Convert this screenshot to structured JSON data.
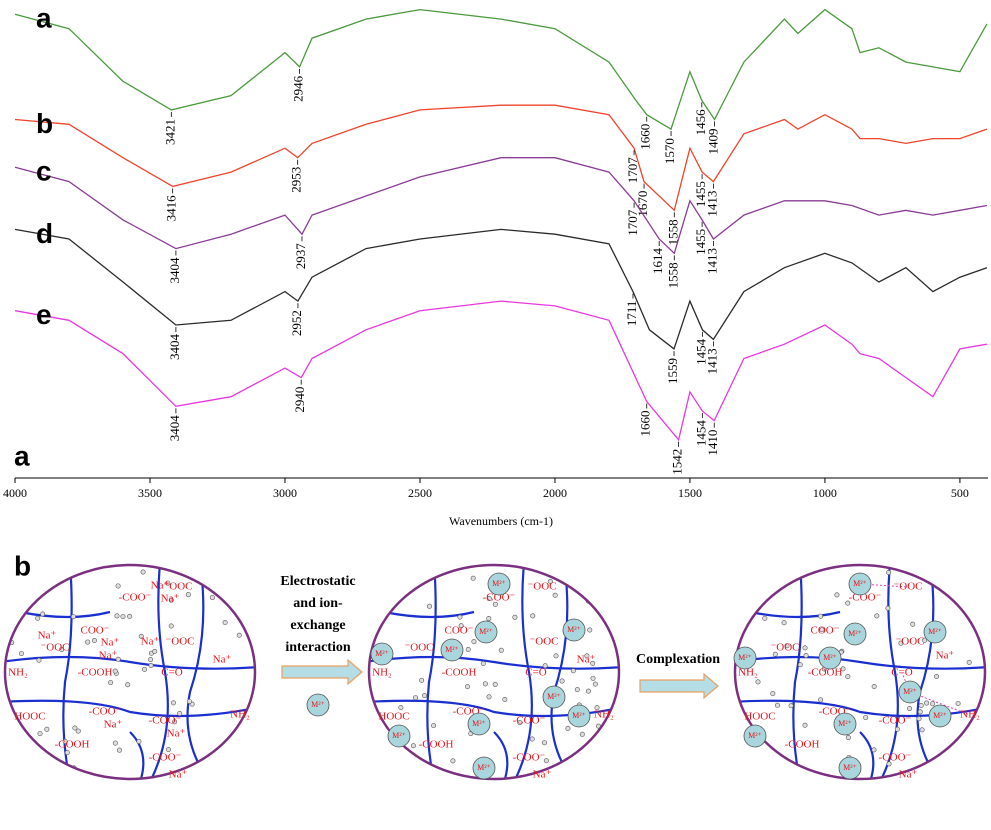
{
  "chart_data": {
    "type": "line",
    "xlabel": "Wavenumbers (cm-1)",
    "panel_label": "a",
    "xlim": [
      4000,
      396
    ],
    "ylim": [
      0,
      100
    ],
    "xticks": [
      4000,
      3500,
      3000,
      2500,
      2000,
      1500,
      1000,
      500
    ],
    "series": [
      {
        "name": "a",
        "color": "#4a9a3c",
        "x": [
          4000,
          3800,
          3600,
          3421,
          3200,
          3000,
          2946,
          2900,
          2700,
          2500,
          2200,
          2000,
          1800,
          1700,
          1660,
          1570,
          1500,
          1456,
          1409,
          1300,
          1150,
          1100,
          1000,
          900,
          870,
          800,
          700,
          600,
          500,
          400
        ],
        "values": [
          97,
          94,
          83,
          77,
          80,
          89,
          86,
          92,
          96,
          98,
          96,
          94,
          87,
          79,
          76,
          73,
          85,
          79,
          75,
          87,
          96,
          93,
          98,
          94,
          89,
          90,
          87,
          86,
          85,
          95
        ],
        "peaks": [
          3421,
          2946,
          1660,
          1570,
          1456,
          1409
        ]
      },
      {
        "name": "b",
        "color": "#f0442c",
        "x": [
          4000,
          3800,
          3600,
          3416,
          3200,
          3000,
          2953,
          2900,
          2700,
          2500,
          2200,
          2000,
          1800,
          1707,
          1670,
          1558,
          1500,
          1455,
          1413,
          1300,
          1150,
          1100,
          1000,
          900,
          870,
          800,
          700,
          600,
          500,
          400
        ],
        "values": [
          75,
          74,
          67,
          61,
          64,
          69,
          67,
          70,
          74,
          77,
          78,
          78,
          76,
          69,
          62,
          56,
          69,
          64,
          62,
          72,
          75,
          73,
          76,
          73,
          71,
          71,
          70,
          71,
          71,
          73
        ],
        "peaks": [
          3416,
          2953,
          1707,
          1670,
          1558,
          1455,
          1413
        ]
      },
      {
        "name": "c",
        "color": "#8a3c96",
        "x": [
          4000,
          3800,
          3600,
          3404,
          3200,
          3000,
          2937,
          2900,
          2700,
          2500,
          2200,
          2000,
          1800,
          1707,
          1614,
          1558,
          1500,
          1455,
          1413,
          1300,
          1150,
          1000,
          900,
          800,
          700,
          600,
          500,
          400
        ],
        "values": [
          65,
          62,
          54,
          48,
          51,
          55,
          51,
          55,
          59,
          63,
          67,
          67,
          64,
          58,
          50,
          47,
          58,
          54,
          50,
          55,
          58,
          58,
          57,
          55,
          56,
          55,
          56,
          57
        ],
        "peaks": [
          3404,
          2937,
          1707,
          1614,
          1558,
          1455,
          1413
        ]
      },
      {
        "name": "d",
        "color": "#2a2a2a",
        "x": [
          4000,
          3800,
          3600,
          3404,
          3200,
          3000,
          2952,
          2900,
          2700,
          2500,
          2200,
          2000,
          1800,
          1711,
          1650,
          1559,
          1500,
          1454,
          1413,
          1300,
          1150,
          1000,
          900,
          800,
          700,
          600,
          500,
          400
        ],
        "values": [
          52,
          50,
          41,
          32,
          33,
          39,
          37,
          42,
          48,
          50,
          52,
          51,
          49,
          39,
          31,
          27,
          37,
          31,
          29,
          39,
          44,
          47,
          45,
          41,
          44,
          39,
          42,
          44
        ],
        "peaks": [
          3404,
          2952,
          1711,
          1559,
          1454,
          1413
        ]
      },
      {
        "name": "e",
        "color": "#e838e0",
        "x": [
          4000,
          3800,
          3600,
          3404,
          3200,
          3000,
          2940,
          2900,
          2700,
          2500,
          2200,
          2000,
          1800,
          1660,
          1542,
          1500,
          1454,
          1410,
          1300,
          1150,
          1000,
          900,
          870,
          800,
          700,
          600,
          500,
          400
        ],
        "values": [
          35,
          33,
          26,
          15,
          17,
          23,
          21,
          25,
          31,
          35,
          37,
          36,
          33,
          16,
          8,
          18,
          14,
          12,
          25,
          28,
          32,
          28,
          26,
          25,
          21,
          17,
          27,
          28
        ],
        "peaks": [
          3404,
          2940,
          1660,
          1542,
          1454,
          1410
        ]
      }
    ]
  },
  "diagram": {
    "panel_label": "b",
    "arrow_1_lines": [
      "Electrostatic",
      "and ion-",
      "exchange",
      "interaction"
    ],
    "arrow_2": "Complexation",
    "ion": "M²⁺",
    "circles": [
      {
        "labels": [
          "-COO⁻",
          "⁻OOC",
          "⁻OOC",
          "COO⁻",
          "⁻OOC",
          "NH₂",
          "-COOH",
          "C=O",
          "NH₂",
          "HOOC",
          "-COO⁻",
          "-COO⁻",
          "-COO⁻",
          "-COOH",
          "Na⁺",
          "Na⁺",
          "Na⁺",
          "Na⁺",
          "Na⁺",
          "Na⁺",
          "Na⁺",
          "Na⁺",
          "Na⁺",
          "Na⁺"
        ]
      },
      {
        "labels": [
          "-COO⁻",
          "⁻OOC",
          "⁻OOC",
          "COO⁻",
          "⁻OOC",
          "NH₂",
          "-COOH",
          "C=O",
          "NH₂",
          "HOOC",
          "-COO⁻",
          "-COO⁻",
          "-COO⁻",
          "-COOH",
          "Na⁺",
          "Na⁺"
        ]
      },
      {
        "labels": [
          "-COO⁻",
          "⁻OOC",
          "⁻OOC",
          "COO⁻",
          "⁻OOC",
          "NH₂",
          "-COOH",
          "C=O",
          "NH₂",
          "HOOC",
          "-COO⁻",
          "-COO⁻",
          "-COO⁻",
          "-COOH",
          "Na⁺",
          "Na⁺"
        ]
      }
    ]
  }
}
